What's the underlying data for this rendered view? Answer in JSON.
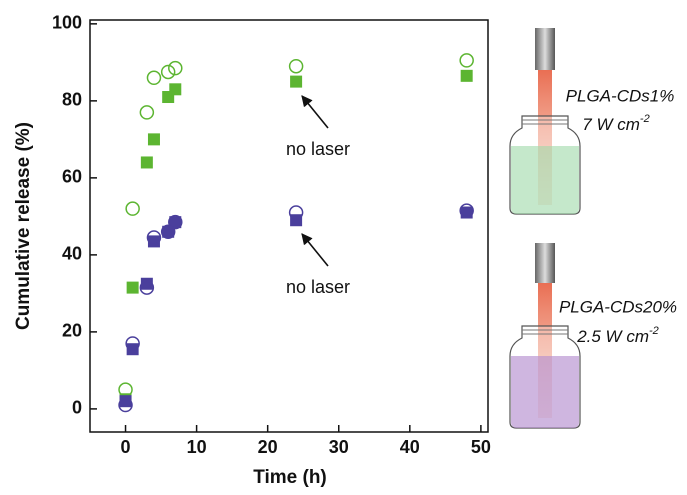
{
  "chart_data": {
    "type": "scatter",
    "x_label": "Time (h)",
    "y_label": "Cumulative release (%)",
    "x": [
      0,
      1,
      3,
      4,
      6,
      7,
      24,
      48
    ],
    "series": [
      {
        "marker": "square",
        "color": "#5cb531",
        "values": [
          2.5,
          31.5,
          64,
          70,
          81,
          83,
          85,
          86.5
        ]
      },
      {
        "marker": "open-circle",
        "color": "#5cb531",
        "values": [
          5,
          52,
          77,
          86,
          87.5,
          88.5,
          89,
          90.5
        ]
      },
      {
        "marker": "square",
        "color": "#4a3f9c",
        "values": [
          2,
          15.5,
          32.5,
          43.5,
          46,
          48.5,
          49,
          51
        ]
      },
      {
        "marker": "open-circle",
        "color": "#4a3f9c",
        "values": [
          1,
          17,
          31.5,
          44.5,
          46,
          48.5,
          51,
          51.5
        ]
      }
    ],
    "xlim": [
      -5,
      51
    ],
    "ylim": [
      -6,
      101
    ],
    "xticks": [
      0,
      10,
      20,
      30,
      40,
      50
    ],
    "yticks": [
      0,
      20,
      40,
      60,
      80,
      100
    ],
    "annotations": [
      "no laser",
      "no laser"
    ],
    "vials": [
      {
        "name": "PLGA-CDs1%",
        "power": "7 W cm",
        "unit_exponent": "-2"
      },
      {
        "name": "PLGA-CDs20%",
        "power": "2.5 W cm",
        "unit_exponent": "-2"
      }
    ]
  }
}
